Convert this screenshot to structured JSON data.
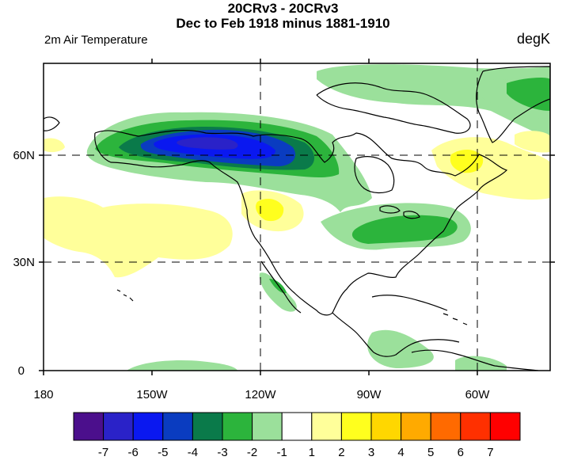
{
  "title": {
    "line1": "20CRv3 - 20CRv3",
    "line2": "Dec to Feb 1918 minus 1881-1910",
    "left": "2m Air Temperature",
    "right": "degK"
  },
  "map": {
    "lon_ticks": [
      "180",
      "150W",
      "120W",
      "90W",
      "60W"
    ],
    "lat_ticks": [
      "60N",
      "30N",
      "0"
    ],
    "lon_range": [
      -180,
      -40
    ],
    "lat_range": [
      0,
      85
    ],
    "grid_lons": [
      -120,
      -60
    ],
    "grid_lats": [
      30,
      60
    ]
  },
  "colorbar": {
    "labels": [
      "-7",
      "-6",
      "-5",
      "-4",
      "-3",
      "-2",
      "-1",
      "1",
      "2",
      "3",
      "4",
      "5",
      "6",
      "7"
    ],
    "colors": [
      "#4b0f8c",
      "#2a22c8",
      "#0a18f0",
      "#0a3cc0",
      "#0a7a4a",
      "#2cb43c",
      "#9be09b",
      "#ffffff",
      "#ffff9a",
      "#ffff1e",
      "#ffd700",
      "#ffaa00",
      "#ff6a00",
      "#ff3000",
      "#ff0000"
    ]
  }
}
